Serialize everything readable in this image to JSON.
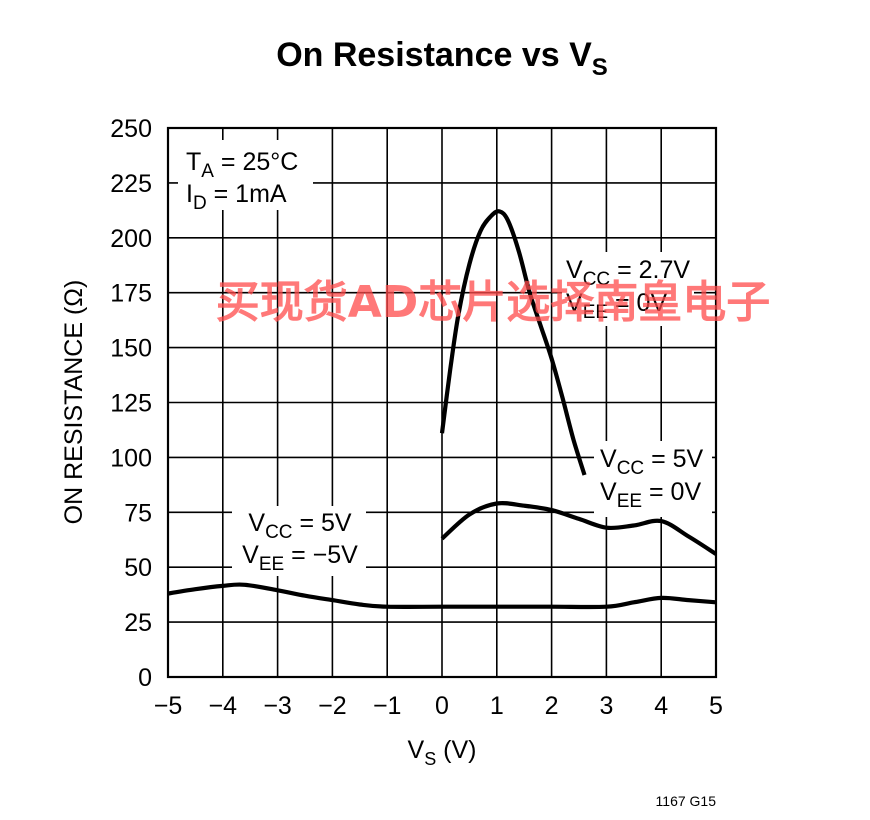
{
  "chart_data": {
    "type": "line",
    "title": "On Resistance vs V",
    "title_sub": "S",
    "xlabel": "V",
    "xlabel_sub": "S",
    "xlabel_unit": " (V)",
    "ylabel": "ON RESISTANCE (Ω)",
    "xlim": [
      -5,
      5
    ],
    "ylim": [
      0,
      250
    ],
    "x_ticks": [
      "−5",
      "−4",
      "−3",
      "−2",
      "−1",
      "0",
      "1",
      "2",
      "3",
      "4",
      "5"
    ],
    "x_tick_values": [
      -5,
      -4,
      -3,
      -2,
      -1,
      0,
      1,
      2,
      3,
      4,
      5
    ],
    "y_ticks": [
      "0",
      "25",
      "50",
      "75",
      "100",
      "125",
      "150",
      "175",
      "200",
      "225",
      "250"
    ],
    "y_tick_values": [
      0,
      25,
      50,
      75,
      100,
      125,
      150,
      175,
      200,
      225,
      250
    ],
    "grid": true,
    "series": [
      {
        "name": "VCC = 2.7V, VEE = 0V",
        "x": [
          0,
          0.15,
          0.3,
          0.5,
          0.7,
          0.9,
          1.05,
          1.2,
          1.4,
          1.6,
          1.8,
          2.0,
          2.2,
          2.4,
          2.6
        ],
        "y": [
          111,
          140,
          165,
          188,
          203,
          210,
          212,
          208,
          194,
          175,
          160,
          145,
          127,
          108,
          92
        ]
      },
      {
        "name": "VCC = 5V, VEE = 0V",
        "x": [
          0,
          0.5,
          1,
          1.5,
          2,
          2.5,
          3,
          3.5,
          4,
          4.5,
          5
        ],
        "y": [
          63,
          74,
          79,
          78,
          76,
          72,
          68,
          69,
          71,
          64,
          56
        ]
      },
      {
        "name": "VCC = 5V, VEE = −5V",
        "x": [
          -5,
          -4.5,
          -4,
          -3.6,
          -3,
          -2.5,
          -2,
          -1.5,
          -1,
          0,
          1,
          2,
          3,
          3.5,
          4,
          4.5,
          5
        ],
        "y": [
          38,
          40,
          41.5,
          42,
          39.5,
          37,
          35,
          33,
          32,
          32,
          32,
          32,
          32,
          34,
          36,
          35,
          34
        ]
      }
    ],
    "annotations": {
      "conditions": [
        {
          "main": "T",
          "sub": "A",
          "rest": " = 25°C"
        },
        {
          "main": "I",
          "sub": "D",
          "rest": " = 1mA"
        }
      ],
      "s27": [
        {
          "main": "V",
          "sub": "CC",
          "rest": " = 2.7V"
        },
        {
          "main": "V",
          "sub": "EE",
          "rest": " = 0V"
        }
      ],
      "s5": [
        {
          "main": "V",
          "sub": "CC",
          "rest": " = 5V"
        },
        {
          "main": "V",
          "sub": "EE",
          "rest": " = 0V"
        }
      ],
      "s5m5": [
        {
          "main": "V",
          "sub": "CC",
          "rest": " = 5V"
        },
        {
          "main": "V",
          "sub": "EE",
          "rest": " = −5V"
        }
      ]
    },
    "figure_code": "1167 G15"
  },
  "watermark": "买现货AD芯片选择南皇电子",
  "colors": {
    "line": "#000000",
    "grid": "#000000",
    "watermark": "#ff4b4b"
  }
}
